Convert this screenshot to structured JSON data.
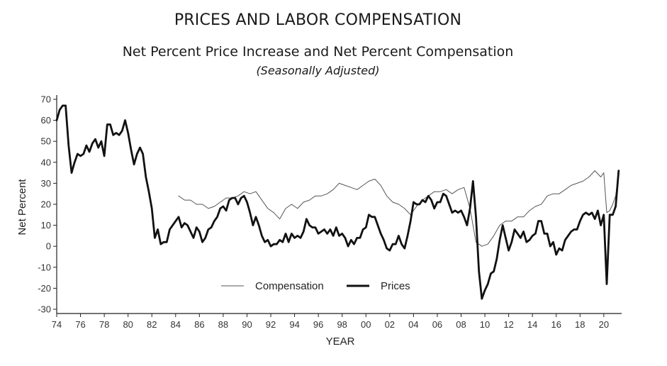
{
  "header": {
    "title": "PRICES AND LABOR COMPENSATION",
    "subtitle": "Net Percent Price Increase and Net Percent Compensation",
    "note": "(Seasonally Adjusted)"
  },
  "chart_data": {
    "type": "line",
    "xlabel": "YEAR",
    "ylabel": "Net Percent",
    "xlim": [
      1974,
      2021.5
    ],
    "ylim": [
      -30,
      70
    ],
    "yticks": [
      -30,
      -20,
      -10,
      0,
      10,
      20,
      30,
      40,
      50,
      60,
      70
    ],
    "xticks": [
      1974,
      1976,
      1978,
      1980,
      1982,
      1984,
      1986,
      1988,
      1990,
      1992,
      1994,
      1996,
      1998,
      2000,
      2002,
      2004,
      2006,
      2008,
      2010,
      2012,
      2014,
      2016,
      2018,
      2020
    ],
    "xtick_labels": [
      "74",
      "76",
      "78",
      "80",
      "82",
      "84",
      "86",
      "88",
      "90",
      "92",
      "94",
      "96",
      "98",
      "00",
      "02",
      "04",
      "06",
      "08",
      "10",
      "12",
      "14",
      "16",
      "18",
      "20"
    ],
    "legend_position": "bottom-center",
    "series": [
      {
        "name": "Compensation",
        "style": "thin",
        "color": "#555555",
        "x": [
          1984.25,
          1984.75,
          1985.25,
          1985.75,
          1986.25,
          1986.75,
          1987.25,
          1987.75,
          1988.25,
          1988.75,
          1989.25,
          1989.75,
          1990.25,
          1990.75,
          1991.25,
          1991.75,
          1992.25,
          1992.75,
          1993.25,
          1993.75,
          1994.25,
          1994.75,
          1995.25,
          1995.75,
          1996.25,
          1996.75,
          1997.25,
          1997.75,
          1998.25,
          1998.75,
          1999.25,
          1999.75,
          2000.25,
          2000.75,
          2001.25,
          2001.75,
          2002.25,
          2002.75,
          2003.25,
          2003.75,
          2004.25,
          2004.75,
          2005.25,
          2005.75,
          2006.25,
          2006.75,
          2007.25,
          2007.75,
          2008.25,
          2008.75,
          2009.25,
          2009.75,
          2010.25,
          2010.75,
          2011.25,
          2011.75,
          2012.25,
          2012.75,
          2013.25,
          2013.75,
          2014.25,
          2014.75,
          2015.25,
          2015.75,
          2016.25,
          2016.75,
          2017.25,
          2017.75,
          2018.25,
          2018.75,
          2019.25,
          2019.75,
          2020.0,
          2020.25,
          2020.5,
          2020.75,
          2021.0,
          2021.25
        ],
        "y": [
          24,
          22,
          22,
          20,
          20,
          18,
          19,
          21,
          23,
          23,
          24,
          26,
          25,
          26,
          22,
          18,
          16,
          13,
          18,
          20,
          18,
          21,
          22,
          24,
          24,
          25,
          27,
          30,
          29,
          28,
          27,
          29,
          31,
          32,
          29,
          24,
          21,
          20,
          18,
          15,
          19,
          22,
          24,
          26,
          26,
          27,
          25,
          27,
          28,
          18,
          2,
          0,
          1,
          5,
          10,
          12,
          12,
          14,
          14,
          17,
          19,
          20,
          24,
          25,
          25,
          27,
          29,
          30,
          31,
          33,
          36,
          33,
          35,
          16,
          17,
          20,
          24,
          35
        ]
      },
      {
        "name": "Prices",
        "style": "thick",
        "color": "#111111",
        "x": [
          1974.0,
          1974.25,
          1974.5,
          1974.75,
          1975.0,
          1975.25,
          1975.5,
          1975.75,
          1976.0,
          1976.25,
          1976.5,
          1976.75,
          1977.0,
          1977.25,
          1977.5,
          1977.75,
          1978.0,
          1978.25,
          1978.5,
          1978.75,
          1979.0,
          1979.25,
          1979.5,
          1979.75,
          1980.0,
          1980.25,
          1980.5,
          1980.75,
          1981.0,
          1981.25,
          1981.5,
          1981.75,
          1982.0,
          1982.25,
          1982.5,
          1982.75,
          1983.0,
          1983.25,
          1983.5,
          1983.75,
          1984.0,
          1984.25,
          1984.5,
          1984.75,
          1985.0,
          1985.25,
          1985.5,
          1985.75,
          1986.0,
          1986.25,
          1986.5,
          1986.75,
          1987.0,
          1987.25,
          1987.5,
          1987.75,
          1988.0,
          1988.25,
          1988.5,
          1988.75,
          1989.0,
          1989.25,
          1989.5,
          1989.75,
          1990.0,
          1990.25,
          1990.5,
          1990.75,
          1991.0,
          1991.25,
          1991.5,
          1991.75,
          1992.0,
          1992.25,
          1992.5,
          1992.75,
          1993.0,
          1993.25,
          1993.5,
          1993.75,
          1994.0,
          1994.25,
          1994.5,
          1994.75,
          1995.0,
          1995.25,
          1995.5,
          1995.75,
          1996.0,
          1996.25,
          1996.5,
          1996.75,
          1997.0,
          1997.25,
          1997.5,
          1997.75,
          1998.0,
          1998.25,
          1998.5,
          1998.75,
          1999.0,
          1999.25,
          1999.5,
          1999.75,
          2000.0,
          2000.25,
          2000.5,
          2000.75,
          2001.0,
          2001.25,
          2001.5,
          2001.75,
          2002.0,
          2002.25,
          2002.5,
          2002.75,
          2003.0,
          2003.25,
          2003.5,
          2003.75,
          2004.0,
          2004.25,
          2004.5,
          2004.75,
          2005.0,
          2005.25,
          2005.5,
          2005.75,
          2006.0,
          2006.25,
          2006.5,
          2006.75,
          2007.0,
          2007.25,
          2007.5,
          2007.75,
          2008.0,
          2008.25,
          2008.5,
          2008.75,
          2009.0,
          2009.25,
          2009.5,
          2009.75,
          2010.0,
          2010.25,
          2010.5,
          2010.75,
          2011.0,
          2011.25,
          2011.5,
          2011.75,
          2012.0,
          2012.25,
          2012.5,
          2012.75,
          2013.0,
          2013.25,
          2013.5,
          2013.75,
          2014.0,
          2014.25,
          2014.5,
          2014.75,
          2015.0,
          2015.25,
          2015.5,
          2015.75,
          2016.0,
          2016.25,
          2016.5,
          2016.75,
          2017.0,
          2017.25,
          2017.5,
          2017.75,
          2018.0,
          2018.25,
          2018.5,
          2018.75,
          2019.0,
          2019.25,
          2019.5,
          2019.75,
          2020.0,
          2020.25,
          2020.5,
          2020.75,
          2021.0,
          2021.25
        ],
        "y": [
          60,
          65,
          67,
          67,
          48,
          35,
          40,
          44,
          43,
          44,
          48,
          45,
          49,
          51,
          47,
          50,
          43,
          58,
          58,
          53,
          54,
          53,
          55,
          60,
          54,
          46,
          39,
          44,
          47,
          44,
          33,
          26,
          18,
          4,
          8,
          1,
          2,
          2,
          8,
          10,
          12,
          14,
          9,
          11,
          10,
          7,
          4,
          9,
          7,
          2,
          4,
          8,
          9,
          12,
          14,
          18,
          19,
          17,
          22,
          23,
          23,
          20,
          23,
          24,
          21,
          16,
          10,
          14,
          10,
          5,
          2,
          3,
          0,
          1,
          1,
          3,
          2,
          6,
          2,
          6,
          4,
          5,
          4,
          7,
          13,
          10,
          9,
          9,
          6,
          7,
          8,
          6,
          8,
          5,
          9,
          5,
          6,
          4,
          0,
          3,
          1,
          4,
          4,
          8,
          9,
          15,
          14,
          14,
          10,
          6,
          3,
          -1,
          -2,
          1,
          1,
          5,
          1,
          -1,
          5,
          12,
          21,
          20,
          20,
          22,
          21,
          24,
          22,
          18,
          21,
          21,
          25,
          24,
          20,
          16,
          17,
          16,
          17,
          14,
          10,
          18,
          31,
          14,
          -12,
          -25,
          -21,
          -18,
          -13,
          -12,
          -6,
          3,
          10,
          4,
          -2,
          2,
          8,
          6,
          4,
          7,
          2,
          3,
          5,
          6,
          12,
          12,
          6,
          6,
          0,
          2,
          -4,
          -1,
          -2,
          3,
          5,
          7,
          8,
          8,
          12,
          15,
          16,
          15,
          16,
          13,
          17,
          10,
          15,
          -18,
          15,
          15,
          19,
          36
        ]
      }
    ]
  }
}
